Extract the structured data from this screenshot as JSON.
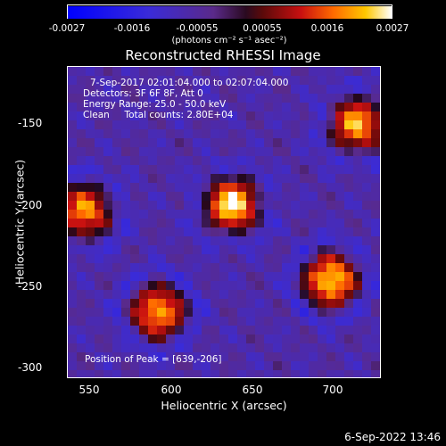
{
  "colorbar": {
    "tick_labels": [
      "-0.0027",
      "-0.0016",
      "-0.00055",
      "0.00055",
      "0.0016",
      "0.0027"
    ],
    "unit_label": "(photons cm⁻² s⁻¹ asec⁻²)",
    "range": [
      -0.0027,
      0.0027
    ]
  },
  "chart_data": {
    "type": "heatmap",
    "title": "Reconstructed RHESSI Image",
    "xlabel": "Heliocentric X (arcsec)",
    "ylabel": "Heliocentric Y (arcsec)",
    "xlim": [
      537,
      727
    ],
    "ylim": [
      -306,
      -117
    ],
    "x_tick_labels": [
      "550",
      "600",
      "650",
      "700"
    ],
    "y_tick_labels": [
      "-150",
      "-200",
      "-250",
      "-300"
    ],
    "peak": [
      639,
      -206
    ],
    "sources": [
      {
        "x": 547,
        "y": -205,
        "intensity": 0.8
      },
      {
        "x": 637,
        "y": -201,
        "intensity": 1.0
      },
      {
        "x": 713,
        "y": -152,
        "intensity": 0.85
      },
      {
        "x": 697,
        "y": -247,
        "intensity": 0.95
      },
      {
        "x": 592,
        "y": -266,
        "intensity": 0.85
      }
    ]
  },
  "annotations": {
    "line1": "7-Sep-2017 02:01:04.000 to 02:07:04.000",
    "line2": "Detectors: 3F 6F 8F, Att 0",
    "line3": "Energy Range: 25.0 - 50.0 keV",
    "line4": "Clean     Total counts: 2.80E+04",
    "peak_text": "Position of Peak = [639,-206]"
  },
  "footer": {
    "timestamp": "6-Sep-2022 13:46"
  },
  "colors": {
    "background": "#000000",
    "foreground": "#ffffff"
  }
}
